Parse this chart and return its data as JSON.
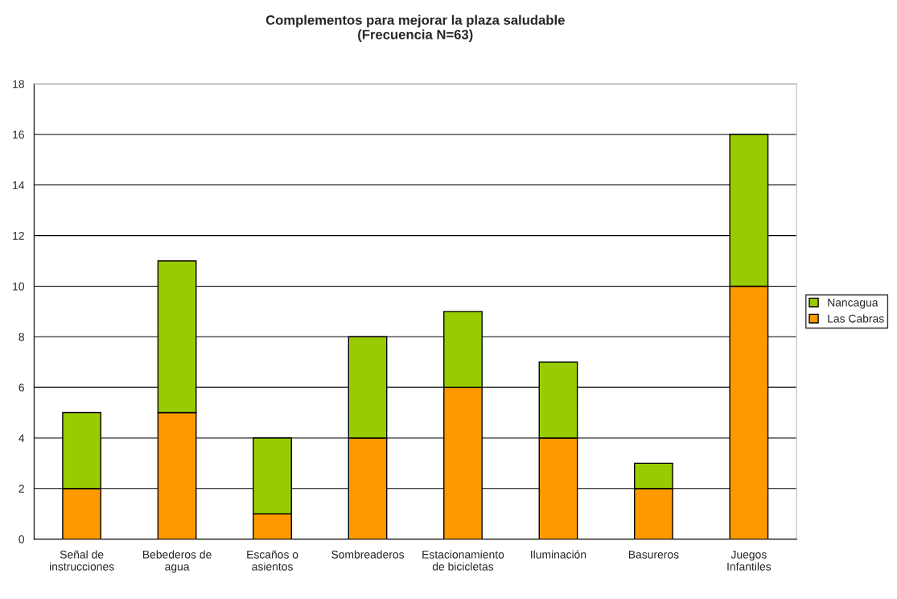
{
  "chart_data": {
    "type": "bar",
    "title": "Complementos para mejorar la plaza saludable\n(Frecuencia N=63)",
    "categories": [
      "Señal de\ninstrucciones",
      "Bebederos de\nagua",
      "Escaños o\nasientos",
      "Sombreaderos",
      "Estacionamiento\nde bicicletas",
      "Iluminación",
      "Basureros",
      "Juegos\nInfantiles"
    ],
    "stacked": true,
    "series": [
      {
        "name": "Las Cabras",
        "color": "#ff9900",
        "values": [
          2,
          5,
          1,
          4,
          6,
          4,
          2,
          10
        ]
      },
      {
        "name": "Nancagua",
        "color": "#99cc00",
        "values": [
          3,
          6,
          3,
          4,
          3,
          3,
          1,
          6
        ]
      }
    ],
    "ylim": [
      0,
      18
    ],
    "yticks": [
      0,
      2,
      4,
      6,
      8,
      10,
      12,
      14,
      16,
      18
    ],
    "grid": "y",
    "legend": "right"
  }
}
